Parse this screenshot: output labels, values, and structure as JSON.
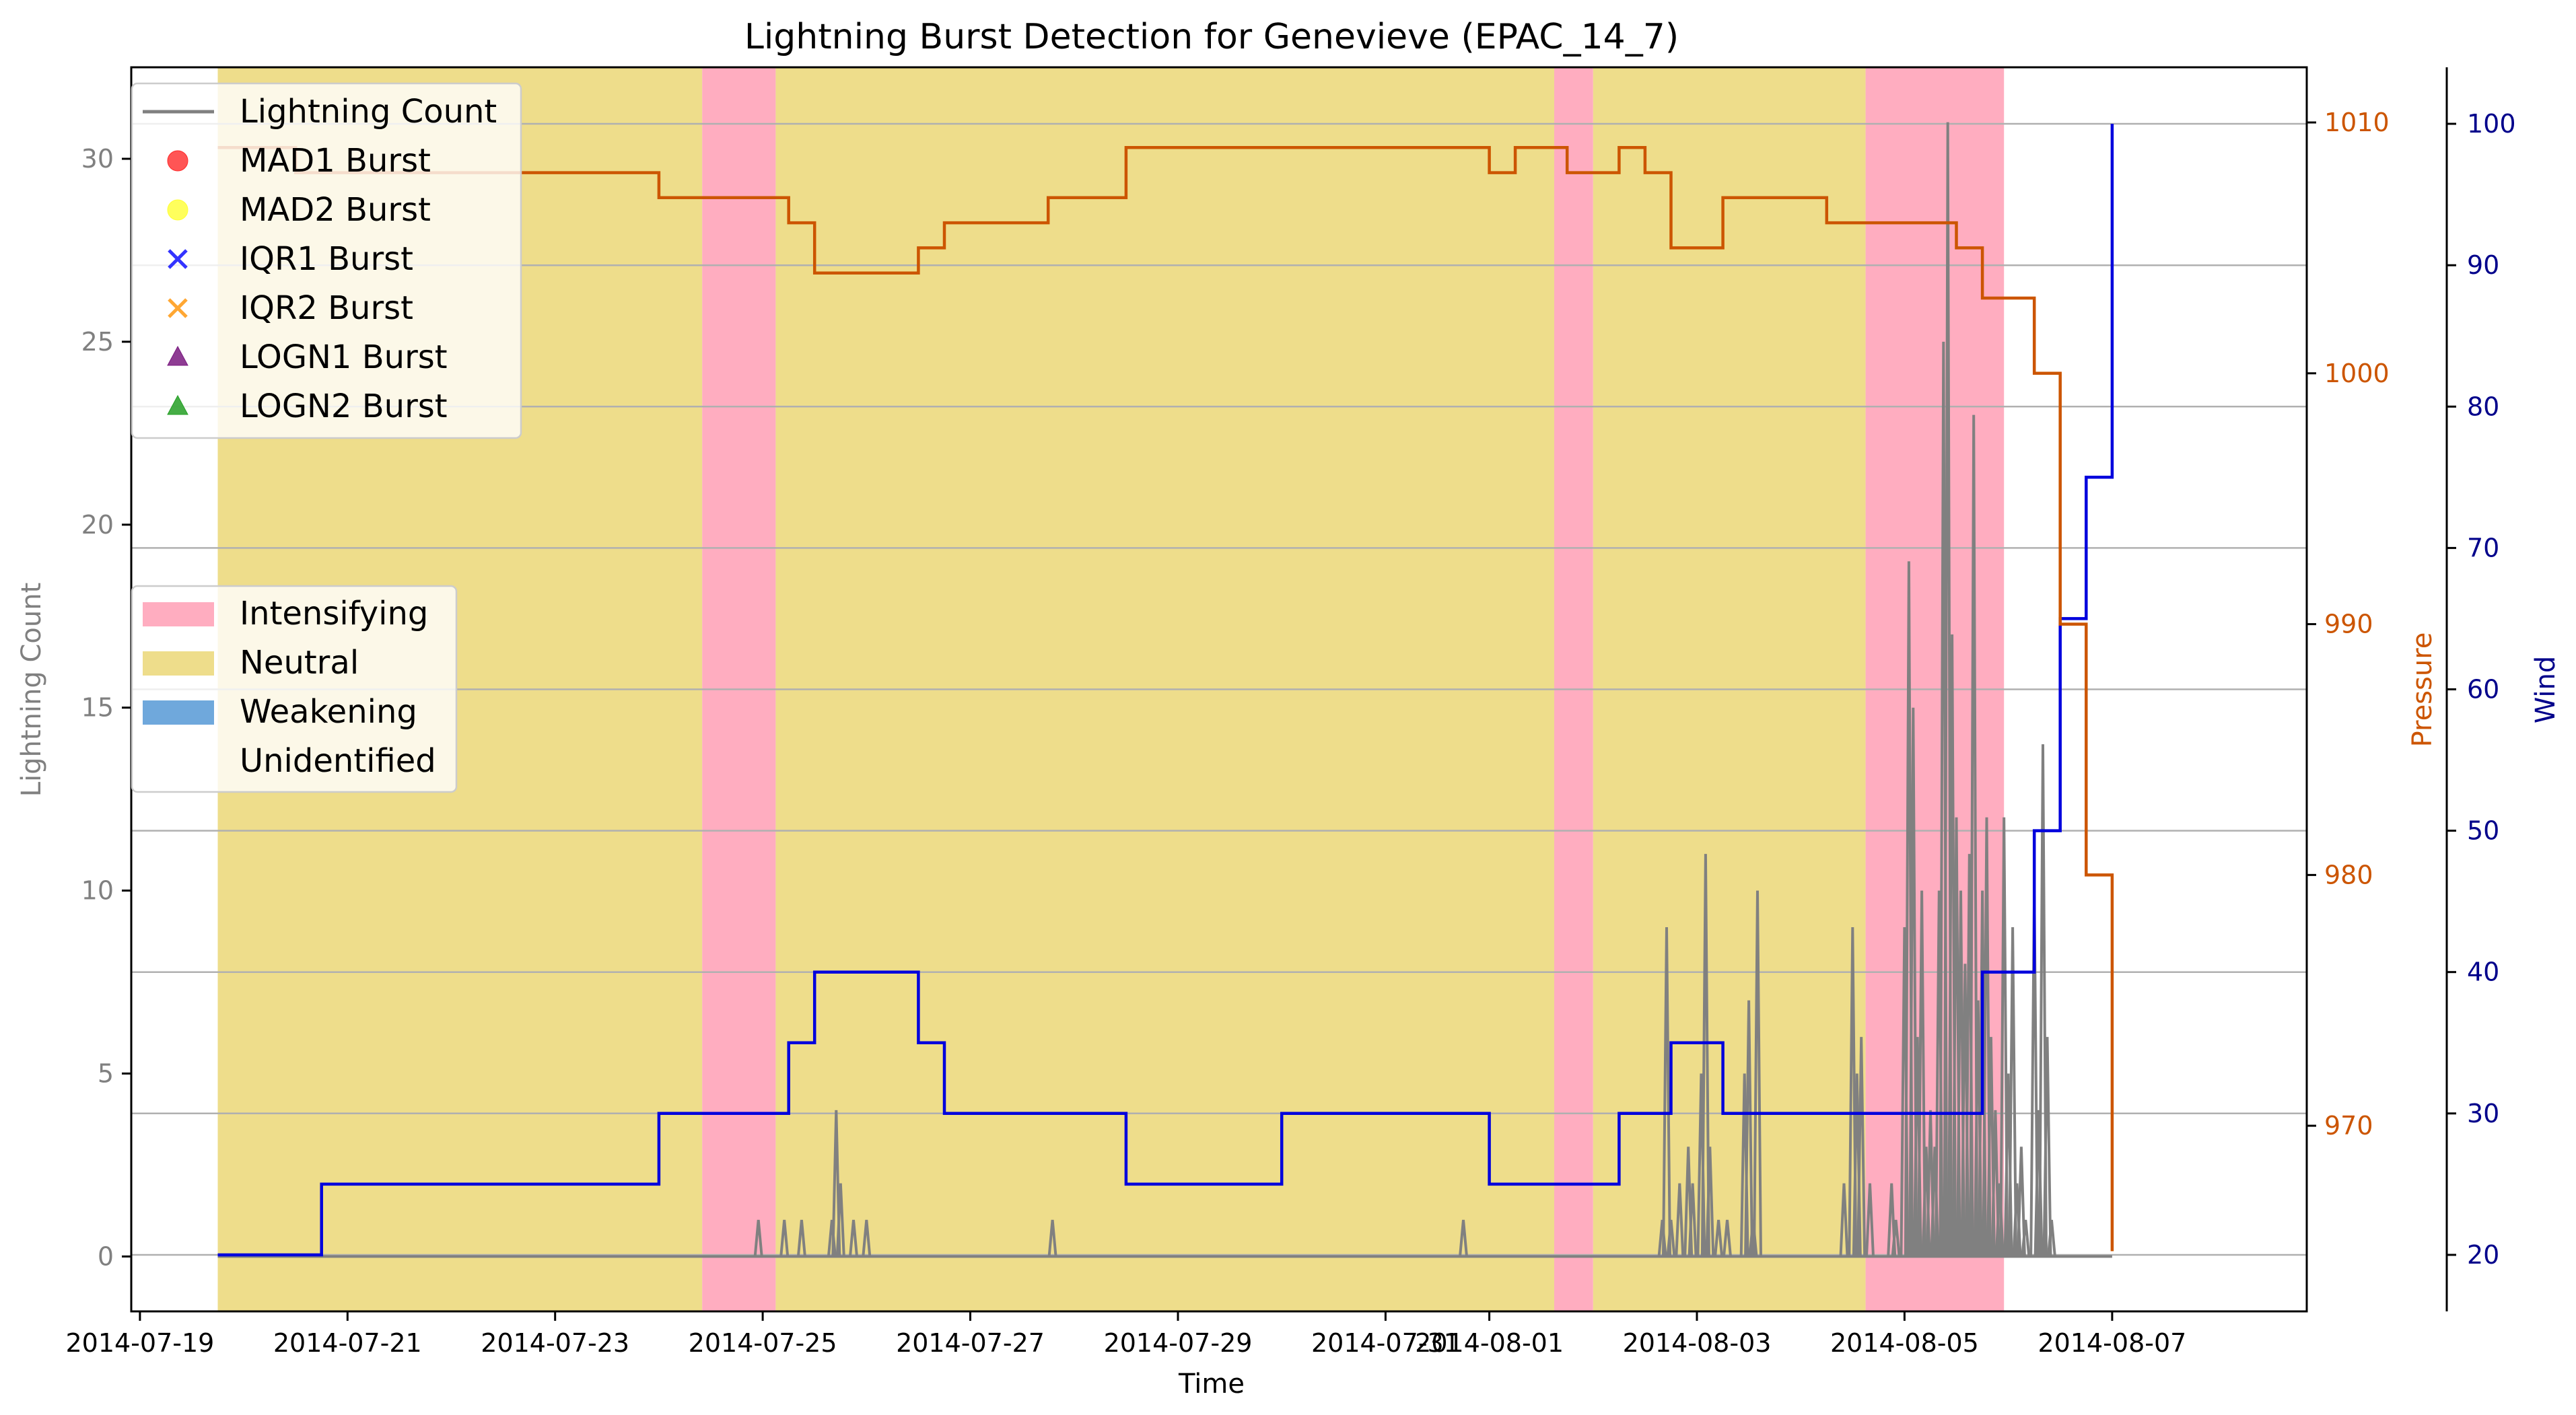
{
  "chart_data": {
    "type": "line",
    "title": "Lightning Burst Detection for Genevieve (EPAC_14_7)",
    "xlabel": "Time",
    "ylabel_left": "Lightning Count",
    "ylabel_pressure": "Pressure",
    "ylabel_wind": "Wind",
    "x_ticks": [
      "2014-07-19",
      "2014-07-21",
      "2014-07-23",
      "2014-07-25",
      "2014-07-27",
      "2014-07-29",
      "2014-07-31",
      "2014-08-01",
      "2014-08-03",
      "2014-08-05",
      "2014-08-07"
    ],
    "x_tick_labels": [
      "2014-07-19",
      "2014-07-21",
      "2014-07-23",
      "2014-07-25",
      "2014-07-27",
      "2014-07-29",
      "2014-07-31",
      "2014-08-01",
      "2014-08-03",
      "2014-08-05",
      "2014-08-07"
    ],
    "x_range": [
      "2014-07-18T22:00",
      "2014-08-08T21:00"
    ],
    "y_left": {
      "range": [
        -1.5,
        32.5
      ],
      "ticks": [
        0,
        5,
        10,
        15,
        20,
        25,
        30
      ],
      "color": "#808080"
    },
    "y_pressure": {
      "range": [
        962.6,
        1012.2
      ],
      "ticks": [
        970,
        980,
        990,
        1000,
        1010
      ],
      "color": "#cc5500"
    },
    "y_wind": {
      "range": [
        16,
        104
      ],
      "ticks": [
        20,
        30,
        40,
        50,
        60,
        70,
        80,
        90,
        100
      ],
      "color": "#00008b"
    },
    "grid": "horizontal (wind axis)",
    "phases": [
      {
        "category": "Neutral",
        "start": "2014-07-19T18:00",
        "end": "2014-07-24T10:00"
      },
      {
        "category": "Intensifying",
        "start": "2014-07-24T10:00",
        "end": "2014-07-25T03:00"
      },
      {
        "category": "Neutral",
        "start": "2014-07-25T03:00",
        "end": "2014-08-01T15:00"
      },
      {
        "category": "Intensifying",
        "start": "2014-08-01T15:00",
        "end": "2014-08-02T00:00"
      },
      {
        "category": "Neutral",
        "start": "2014-08-02T00:00",
        "end": "2014-08-04T15:00"
      },
      {
        "category": "Intensifying",
        "start": "2014-08-04T15:00",
        "end": "2014-08-05T23:00"
      }
    ],
    "series": [
      {
        "name": "Pressure",
        "axis": "pressure",
        "color": "#cc5500",
        "step": true,
        "points": [
          [
            "2014-07-19T18:00",
            1009
          ],
          [
            "2014-07-20T12:00",
            1008
          ],
          [
            "2014-07-24T00:00",
            1007
          ],
          [
            "2014-07-25T06:00",
            1006
          ],
          [
            "2014-07-25T12:00",
            1004
          ],
          [
            "2014-07-26T12:00",
            1005
          ],
          [
            "2014-07-26T18:00",
            1006
          ],
          [
            "2014-07-27T18:00",
            1007
          ],
          [
            "2014-07-28T12:00",
            1009
          ],
          [
            "2014-08-01T00:00",
            1008
          ],
          [
            "2014-08-01T06:00",
            1009
          ],
          [
            "2014-08-01T18:00",
            1008
          ],
          [
            "2014-08-02T06:00",
            1009
          ],
          [
            "2014-08-02T12:00",
            1008
          ],
          [
            "2014-08-02T18:00",
            1005
          ],
          [
            "2014-08-03T06:00",
            1007
          ],
          [
            "2014-08-04T06:00",
            1006
          ],
          [
            "2014-08-05T12:00",
            1005
          ],
          [
            "2014-08-05T18:00",
            1003
          ],
          [
            "2014-08-06T06:00",
            1000
          ],
          [
            "2014-08-06T12:00",
            990
          ],
          [
            "2014-08-06T18:00",
            980
          ],
          [
            "2014-08-07T00:00",
            965
          ]
        ]
      },
      {
        "name": "Wind",
        "axis": "wind",
        "color": "#0000dd",
        "step": true,
        "points": [
          [
            "2014-07-19T18:00",
            20
          ],
          [
            "2014-07-20T18:00",
            25
          ],
          [
            "2014-07-24T00:00",
            30
          ],
          [
            "2014-07-25T06:00",
            35
          ],
          [
            "2014-07-25T12:00",
            40
          ],
          [
            "2014-07-26T12:00",
            35
          ],
          [
            "2014-07-26T18:00",
            30
          ],
          [
            "2014-07-28T12:00",
            25
          ],
          [
            "2014-07-30T00:00",
            30
          ],
          [
            "2014-08-01T00:00",
            25
          ],
          [
            "2014-08-02T06:00",
            30
          ],
          [
            "2014-08-02T18:00",
            35
          ],
          [
            "2014-08-03T06:00",
            30
          ],
          [
            "2014-08-05T18:00",
            40
          ],
          [
            "2014-08-06T06:00",
            50
          ],
          [
            "2014-08-06T12:00",
            65
          ],
          [
            "2014-08-06T18:00",
            75
          ],
          [
            "2014-08-07T00:00",
            100
          ]
        ]
      },
      {
        "name": "Lightning Count",
        "axis": "left",
        "color": "#808080",
        "points": [
          [
            "2014-07-24T23:00",
            1
          ],
          [
            "2014-07-25T05:00",
            1
          ],
          [
            "2014-07-25T09:00",
            1
          ],
          [
            "2014-07-25T16:00",
            1
          ],
          [
            "2014-07-25T17:00",
            4
          ],
          [
            "2014-07-25T18:00",
            2
          ],
          [
            "2014-07-25T21:00",
            1
          ],
          [
            "2014-07-26T00:00",
            1
          ],
          [
            "2014-07-27T19:00",
            1
          ],
          [
            "2014-07-31T18:00",
            1
          ],
          [
            "2014-08-02T16:00",
            1
          ],
          [
            "2014-08-02T17:00",
            9
          ],
          [
            "2014-08-02T18:00",
            1
          ],
          [
            "2014-08-02T20:00",
            2
          ],
          [
            "2014-08-02T22:00",
            3
          ],
          [
            "2014-08-02T23:00",
            2
          ],
          [
            "2014-08-03T01:00",
            5
          ],
          [
            "2014-08-03T02:00",
            11
          ],
          [
            "2014-08-03T03:00",
            3
          ],
          [
            "2014-08-03T05:00",
            1
          ],
          [
            "2014-08-03T07:00",
            1
          ],
          [
            "2014-08-03T11:00",
            5
          ],
          [
            "2014-08-03T12:00",
            7
          ],
          [
            "2014-08-03T13:00",
            1
          ],
          [
            "2014-08-03T14:00",
            10
          ],
          [
            "2014-08-04T10:00",
            2
          ],
          [
            "2014-08-04T12:00",
            9
          ],
          [
            "2014-08-04T13:00",
            5
          ],
          [
            "2014-08-04T14:00",
            6
          ],
          [
            "2014-08-04T16:00",
            2
          ],
          [
            "2014-08-04T21:00",
            2
          ],
          [
            "2014-08-04T22:00",
            1
          ],
          [
            "2014-08-05T00:00",
            9
          ],
          [
            "2014-08-05T01:00",
            19
          ],
          [
            "2014-08-05T02:00",
            15
          ],
          [
            "2014-08-05T03:00",
            6
          ],
          [
            "2014-08-05T04:00",
            10
          ],
          [
            "2014-08-05T05:00",
            3
          ],
          [
            "2014-08-05T06:00",
            4
          ],
          [
            "2014-08-05T07:00",
            3
          ],
          [
            "2014-08-05T08:00",
            10
          ],
          [
            "2014-08-05T09:00",
            25
          ],
          [
            "2014-08-05T10:00",
            31
          ],
          [
            "2014-08-05T11:00",
            17
          ],
          [
            "2014-08-05T12:00",
            12
          ],
          [
            "2014-08-05T13:00",
            10
          ],
          [
            "2014-08-05T14:00",
            8
          ],
          [
            "2014-08-05T15:00",
            11
          ],
          [
            "2014-08-05T16:00",
            23
          ],
          [
            "2014-08-05T17:00",
            7
          ],
          [
            "2014-08-05T18:00",
            10
          ],
          [
            "2014-08-05T19:00",
            12
          ],
          [
            "2014-08-05T20:00",
            6
          ],
          [
            "2014-08-05T21:00",
            4
          ],
          [
            "2014-08-05T22:00",
            2
          ],
          [
            "2014-08-05T23:00",
            12
          ],
          [
            "2014-08-06T00:00",
            5
          ],
          [
            "2014-08-06T01:00",
            9
          ],
          [
            "2014-08-06T02:00",
            2
          ],
          [
            "2014-08-06T03:00",
            3
          ],
          [
            "2014-08-06T04:00",
            1
          ],
          [
            "2014-08-06T06:00",
            10
          ],
          [
            "2014-08-06T07:00",
            4
          ],
          [
            "2014-08-06T08:00",
            14
          ],
          [
            "2014-08-06T09:00",
            6
          ],
          [
            "2014-08-06T10:00",
            1
          ]
        ]
      }
    ],
    "legend_markers": {
      "placement": "top-left",
      "entries": [
        {
          "label": "Lightning Count",
          "symbol": "line",
          "color": "#808080"
        },
        {
          "label": "MAD1 Burst",
          "symbol": "circle",
          "color": "#ff2a2a"
        },
        {
          "label": "MAD2 Burst",
          "symbol": "circle",
          "color": "#ffff33"
        },
        {
          "label": "IQR1 Burst",
          "symbol": "x",
          "color": "#3333ff"
        },
        {
          "label": "IQR2 Burst",
          "symbol": "x",
          "color": "#ffa733"
        },
        {
          "label": "LOGN1 Burst",
          "symbol": "triangle",
          "color": "#7a1a80"
        },
        {
          "label": "LOGN2 Burst",
          "symbol": "triangle",
          "color": "#249f24"
        }
      ]
    },
    "legend_phases": {
      "placement": "center-left",
      "entries": [
        {
          "label": "Intensifying",
          "color": "#ffadc0"
        },
        {
          "label": "Neutral",
          "color": "#eedd8b"
        },
        {
          "label": "Weakening",
          "color": "#6fa8dc"
        },
        {
          "label": "Unidentified",
          "color": "#ffffff"
        }
      ]
    }
  }
}
